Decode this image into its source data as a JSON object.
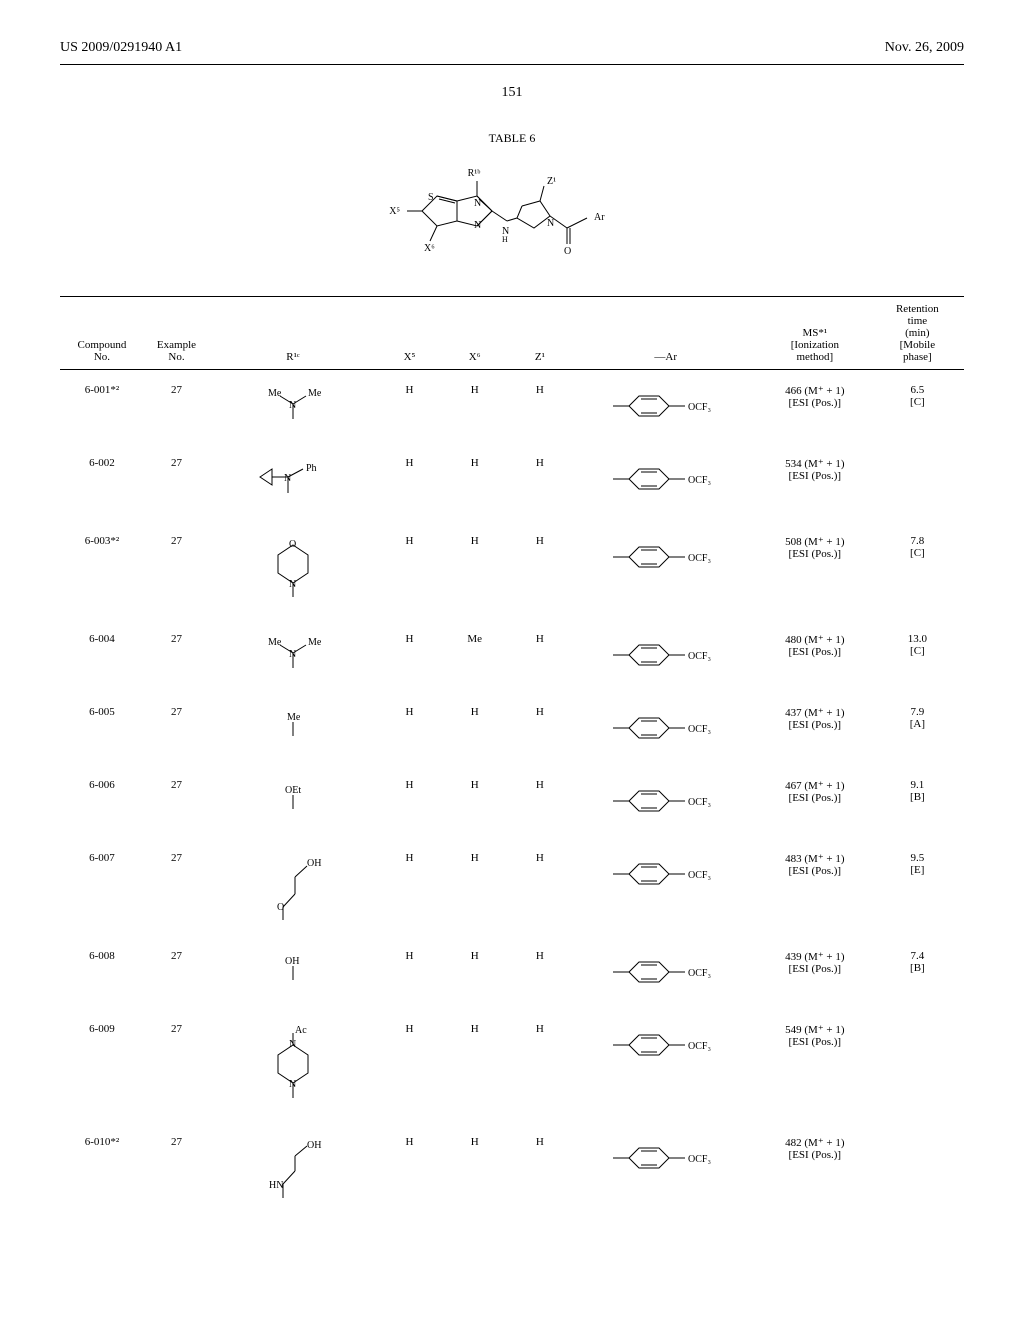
{
  "header": {
    "left": "US 2009/0291940 A1",
    "right": "Nov. 26, 2009"
  },
  "pageNumber": "151",
  "tableTitle": "TABLE 6",
  "columns": {
    "compound": "Compound\nNo.",
    "example": "Example\nNo.",
    "r1c": "R¹ᶜ",
    "x5": "X⁵",
    "x6": "X⁶",
    "z1": "Z¹",
    "ar": "—Ar",
    "ms": "MS*¹\n[Ionization\nmethod]",
    "rt": "Retention\ntime\n(min)\n[Mobile\nphase]"
  },
  "rows": [
    {
      "compound": "6-001*²",
      "example": "27",
      "r1c": "dimethylamino",
      "x5": "H",
      "x6": "H",
      "z1": "H",
      "ar": "phenyl-OCF3",
      "ms": "466 (M⁺ + 1)\n[ESI (Pos.)]",
      "rt": "6.5\n[C]"
    },
    {
      "compound": "6-002",
      "example": "27",
      "r1c": "cyclopropyl-N-Ph",
      "x5": "H",
      "x6": "H",
      "z1": "H",
      "ar": "phenyl-OCF3",
      "ms": "534 (M⁺ + 1)\n[ESI (Pos.)]",
      "rt": ""
    },
    {
      "compound": "6-003*²",
      "example": "27",
      "r1c": "morpholino",
      "x5": "H",
      "x6": "H",
      "z1": "H",
      "ar": "phenyl-OCF3",
      "ms": "508 (M⁺ + 1)\n[ESI (Pos.)]",
      "rt": "7.8\n[C]"
    },
    {
      "compound": "6-004",
      "example": "27",
      "r1c": "dimethylamino",
      "x5": "H",
      "x6": "Me",
      "z1": "H",
      "ar": "phenyl-OCF3",
      "ms": "480 (M⁺ + 1)\n[ESI (Pos.)]",
      "rt": "13.0\n[C]"
    },
    {
      "compound": "6-005",
      "example": "27",
      "r1c": "Me",
      "x5": "H",
      "x6": "H",
      "z1": "H",
      "ar": "phenyl-OCF3",
      "ms": "437 (M⁺ + 1)\n[ESI (Pos.)]",
      "rt": "7.9\n[A]"
    },
    {
      "compound": "6-006",
      "example": "27",
      "r1c": "OEt",
      "x5": "H",
      "x6": "H",
      "z1": "H",
      "ar": "phenyl-OCF3",
      "ms": "467 (M⁺ + 1)\n[ESI (Pos.)]",
      "rt": "9.1\n[B]"
    },
    {
      "compound": "6-007",
      "example": "27",
      "r1c": "O-ethyl-OH",
      "x5": "H",
      "x6": "H",
      "z1": "H",
      "ar": "phenyl-OCF3",
      "ms": "483 (M⁺ + 1)\n[ESI (Pos.)]",
      "rt": "9.5\n[E]"
    },
    {
      "compound": "6-008",
      "example": "27",
      "r1c": "OH",
      "x5": "H",
      "x6": "H",
      "z1": "H",
      "ar": "phenyl-OCF3",
      "ms": "439 (M⁺ + 1)\n[ESI (Pos.)]",
      "rt": "7.4\n[B]"
    },
    {
      "compound": "6-009",
      "example": "27",
      "r1c": "N-Ac-piperazinyl",
      "x5": "H",
      "x6": "H",
      "z1": "H",
      "ar": "phenyl-OCF3",
      "ms": "549 (M⁺ + 1)\n[ESI (Pos.)]",
      "rt": ""
    },
    {
      "compound": "6-010*²",
      "example": "27",
      "r1c": "HN-ethyl-OH",
      "x5": "H",
      "x6": "H",
      "z1": "H",
      "ar": "phenyl-OCF3",
      "ms": "482 (M⁺ + 1)\n[ESI (Pos.)]",
      "rt": ""
    }
  ],
  "svgDefs": {
    "phenyl-OCF3": "phenylOCF3",
    "dimethylamino": "nme2",
    "cyclopropyl-N-Ph": "cypNPh",
    "morpholino": "morph",
    "Me": "me",
    "OEt": "oet",
    "O-ethyl-OH": "oetoh",
    "OH": "oh",
    "N-Ac-piperazinyl": "nacpip",
    "HN-ethyl-OH": "hnetoh"
  }
}
